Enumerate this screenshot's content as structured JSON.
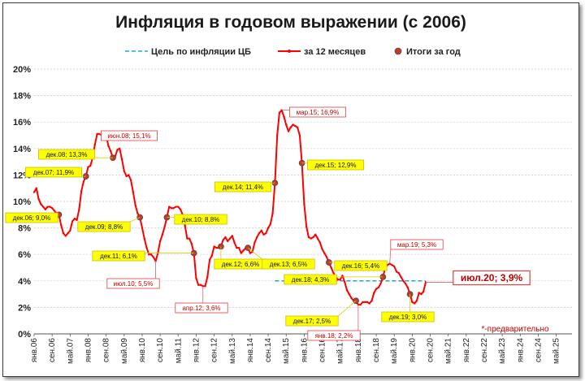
{
  "chart_data": {
    "type": "line",
    "title": "Инфляция в годовом выражении (с 2006)",
    "xlabel": "",
    "ylabel": "",
    "ylim": [
      0,
      20
    ],
    "y_ticks": [
      "0%",
      "2%",
      "4%",
      "6%",
      "8%",
      "10%",
      "12%",
      "14%",
      "16%",
      "18%",
      "20%"
    ],
    "x_ticks": [
      "янв.06",
      "сен.06",
      "май.07",
      "янв.08",
      "сен.08",
      "май.09",
      "янв.10",
      "сен.10",
      "май.11",
      "янв.12",
      "сен.12",
      "май.13",
      "янв.14",
      "сен.14",
      "май.15",
      "янв.16",
      "сен.16",
      "май.17",
      "янв.18",
      "сен.18",
      "май.19",
      "янв.20",
      "сен.20",
      "май.21",
      "янв.22",
      "сен.22",
      "май.23",
      "янв.24",
      "сен.24",
      "май.25"
    ],
    "grid": true,
    "legend_position": "top",
    "legend": {
      "target": "Цель по инфляции ЦБ",
      "monthly": "за 12 месяцев",
      "yearly": "Итоги за год"
    },
    "colors": {
      "line": "#ff0000",
      "target": "#1fa8d8",
      "dot": "#c0392b",
      "label_fill": "#ffff00"
    },
    "series": [
      {
        "name": "за 12 месяцев",
        "x": [
          "2006-01",
          "2006-02",
          "2006-03",
          "2006-04",
          "2006-05",
          "2006-06",
          "2006-07",
          "2006-08",
          "2006-09",
          "2006-10",
          "2006-11",
          "2006-12",
          "2007-01",
          "2007-02",
          "2007-03",
          "2007-04",
          "2007-05",
          "2007-06",
          "2007-07",
          "2007-08",
          "2007-09",
          "2007-10",
          "2007-11",
          "2007-12",
          "2008-01",
          "2008-02",
          "2008-03",
          "2008-04",
          "2008-05",
          "2008-06",
          "2008-07",
          "2008-08",
          "2008-09",
          "2008-10",
          "2008-11",
          "2008-12",
          "2009-01",
          "2009-02",
          "2009-03",
          "2009-04",
          "2009-05",
          "2009-06",
          "2009-07",
          "2009-08",
          "2009-09",
          "2009-10",
          "2009-11",
          "2009-12",
          "2010-01",
          "2010-02",
          "2010-03",
          "2010-04",
          "2010-05",
          "2010-06",
          "2010-07",
          "2010-08",
          "2010-09",
          "2010-10",
          "2010-11",
          "2010-12",
          "2011-01",
          "2011-02",
          "2011-03",
          "2011-04",
          "2011-05",
          "2011-06",
          "2011-07",
          "2011-08",
          "2011-09",
          "2011-10",
          "2011-11",
          "2011-12",
          "2012-01",
          "2012-02",
          "2012-03",
          "2012-04",
          "2012-05",
          "2012-06",
          "2012-07",
          "2012-08",
          "2012-09",
          "2012-10",
          "2012-11",
          "2012-12",
          "2013-01",
          "2013-02",
          "2013-03",
          "2013-04",
          "2013-05",
          "2013-06",
          "2013-07",
          "2013-08",
          "2013-09",
          "2013-10",
          "2013-11",
          "2013-12",
          "2014-01",
          "2014-02",
          "2014-03",
          "2014-04",
          "2014-05",
          "2014-06",
          "2014-07",
          "2014-08",
          "2014-09",
          "2014-10",
          "2014-11",
          "2014-12",
          "2015-01",
          "2015-02",
          "2015-03",
          "2015-04",
          "2015-05",
          "2015-06",
          "2015-07",
          "2015-08",
          "2015-09",
          "2015-10",
          "2015-11",
          "2015-12",
          "2016-01",
          "2016-02",
          "2016-03",
          "2016-04",
          "2016-05",
          "2016-06",
          "2016-07",
          "2016-08",
          "2016-09",
          "2016-10",
          "2016-11",
          "2016-12",
          "2017-01",
          "2017-02",
          "2017-03",
          "2017-04",
          "2017-05",
          "2017-06",
          "2017-07",
          "2017-08",
          "2017-09",
          "2017-10",
          "2017-11",
          "2017-12",
          "2018-01",
          "2018-02",
          "2018-03",
          "2018-04",
          "2018-05",
          "2018-06",
          "2018-07",
          "2018-08",
          "2018-09",
          "2018-10",
          "2018-11",
          "2018-12",
          "2019-01",
          "2019-02",
          "2019-03",
          "2019-04",
          "2019-05",
          "2019-06",
          "2019-07",
          "2019-08",
          "2019-09",
          "2019-10",
          "2019-11",
          "2019-12",
          "2020-01",
          "2020-02",
          "2020-03",
          "2020-04",
          "2020-05",
          "2020-06",
          "2020-07"
        ],
        "values": [
          10.7,
          11.0,
          10.2,
          9.8,
          9.6,
          9.4,
          9.6,
          9.6,
          9.5,
          9.3,
          9.1,
          9.0,
          8.2,
          7.6,
          7.4,
          7.6,
          7.8,
          8.5,
          8.7,
          8.6,
          9.4,
          10.8,
          11.5,
          11.9,
          12.6,
          12.7,
          13.3,
          14.3,
          15.1,
          15.1,
          15.0,
          15.0,
          15.0,
          14.2,
          13.8,
          13.3,
          13.4,
          13.9,
          14.0,
          13.2,
          12.3,
          11.9,
          12.0,
          11.6,
          10.7,
          9.7,
          9.1,
          8.8,
          8.0,
          7.2,
          6.5,
          6.0,
          6.0,
          5.8,
          5.5,
          6.1,
          7.0,
          7.5,
          8.1,
          8.8,
          9.6,
          9.5,
          9.5,
          9.6,
          9.6,
          9.4,
          9.0,
          8.2,
          7.2,
          7.2,
          6.8,
          6.1,
          4.2,
          3.7,
          3.7,
          3.6,
          3.6,
          4.3,
          5.6,
          5.9,
          6.6,
          6.5,
          6.5,
          6.6,
          7.1,
          7.3,
          7.0,
          7.2,
          7.4,
          6.9,
          6.5,
          6.5,
          6.1,
          6.3,
          6.5,
          6.5,
          6.1,
          6.2,
          6.9,
          7.3,
          7.6,
          7.8,
          7.5,
          7.6,
          8.0,
          8.3,
          9.1,
          11.4,
          15.0,
          16.7,
          16.9,
          16.4,
          15.8,
          15.3,
          15.6,
          15.8,
          15.7,
          15.6,
          15.0,
          12.9,
          9.8,
          8.1,
          7.3,
          7.2,
          7.3,
          7.5,
          7.2,
          6.9,
          6.4,
          6.1,
          5.8,
          5.4,
          5.0,
          4.6,
          4.3,
          4.1,
          4.1,
          4.4,
          3.9,
          3.3,
          3.0,
          2.7,
          2.5,
          2.5,
          2.2,
          2.2,
          2.4,
          2.4,
          2.4,
          2.3,
          2.5,
          3.1,
          3.4,
          3.5,
          3.8,
          4.3,
          5.0,
          5.2,
          5.3,
          5.2,
          5.1,
          4.7,
          4.6,
          4.3,
          4.0,
          3.8,
          3.5,
          3.0,
          2.4,
          2.3,
          2.5,
          3.1,
          3.0,
          3.2,
          3.9
        ]
      },
      {
        "name": "Итоги за год",
        "x": [
          "2006-12",
          "2007-12",
          "2008-12",
          "2009-12",
          "2010-12",
          "2011-12",
          "2012-12",
          "2013-12",
          "2014-12",
          "2015-12",
          "2016-12",
          "2017-12",
          "2018-12",
          "2019-12"
        ],
        "values": [
          9.0,
          11.9,
          13.3,
          8.8,
          8.8,
          6.1,
          6.6,
          6.5,
          11.4,
          12.9,
          5.4,
          2.5,
          4.3,
          3.0
        ]
      },
      {
        "name": "Цель по инфляции ЦБ",
        "x": [
          "2014-12",
          "2020-07"
        ],
        "values": [
          4.0,
          4.0
        ]
      }
    ],
    "annotations": [
      {
        "text": "дек.06; 9,0%",
        "style": "yellow"
      },
      {
        "text": "дек.07; 11,9%",
        "style": "yellow"
      },
      {
        "text": "дек.08; 13,3%",
        "style": "yellow"
      },
      {
        "text": "июн.08; 15,1%",
        "style": "white"
      },
      {
        "text": "дек.09; 8,8%",
        "style": "yellow"
      },
      {
        "text": "дек.10; 8,8%",
        "style": "yellow"
      },
      {
        "text": "дек.11; 6,1%",
        "style": "yellow"
      },
      {
        "text": "июл.10; 5,5%",
        "style": "white"
      },
      {
        "text": "апр.12; 3,6%",
        "style": "white"
      },
      {
        "text": "дек.12; 6,6%",
        "style": "yellow"
      },
      {
        "text": "дек.13; 6,5%",
        "style": "yellow"
      },
      {
        "text": "дек.14; 11,4%",
        "style": "yellow"
      },
      {
        "text": "мар.15; 16,9%",
        "style": "white"
      },
      {
        "text": "дек.15; 12,9%",
        "style": "yellow"
      },
      {
        "text": "дек.16; 5,4%",
        "style": "yellow"
      },
      {
        "text": "дек.18; 4,3%",
        "style": "yellow"
      },
      {
        "text": "дек.17; 2,5%",
        "style": "yellow"
      },
      {
        "text": "янв.18; 2,2%",
        "style": "white"
      },
      {
        "text": "мар.19; 5,3%",
        "style": "white"
      },
      {
        "text": "дек.19; 3,0%",
        "style": "yellow"
      },
      {
        "text": "июл.20; 3,9%",
        "style": "big"
      }
    ],
    "note": "*-предварительно"
  }
}
